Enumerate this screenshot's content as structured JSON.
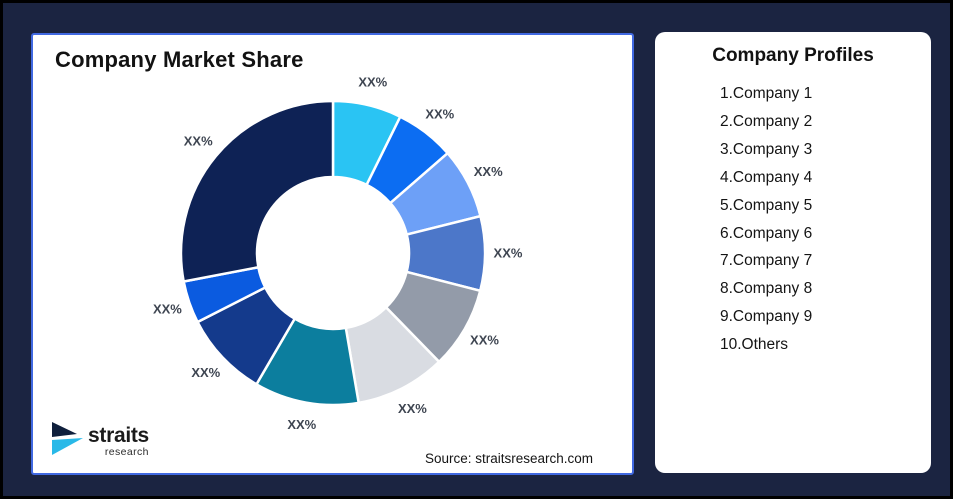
{
  "theme": {
    "bg": "#1B2441",
    "frame": "#000000",
    "card-border": "#4169E1",
    "text-dark": "#121212",
    "label-gray": "#3E4551"
  },
  "left_card": {
    "title": "Company Market Share",
    "source_text": "Source: straitsresearch.com",
    "logo": {
      "brand": "straits",
      "sub": "research",
      "mark_navy": "#0F1F3C",
      "mark_cyan": "#29B9E8"
    }
  },
  "right_card": {
    "title": "Company Profiles",
    "items": [
      "1.Company 1",
      "2.Company 2",
      "3.Company 3",
      "4.Company 4",
      "5.Company 5",
      "6.Company 6",
      "7.Company 7",
      "8.Company 8",
      "9.Company 9",
      "10.Others"
    ]
  },
  "chart_data": {
    "type": "pie",
    "subtype": "donut",
    "title": "Company Market Share",
    "note": "numeric values are masked as XX% in the source image; shares estimated from arc angles",
    "start_angle_deg": 0,
    "clockwise": true,
    "inner_radius_ratio": 0.5,
    "legend_position": "none",
    "segments": [
      {
        "name": "segment-1",
        "label": "XX%",
        "value": 7.3,
        "color": "#2AC4F3"
      },
      {
        "name": "segment-2",
        "label": "XX%",
        "value": 6.3,
        "color": "#0C6DF2"
      },
      {
        "name": "segment-3",
        "label": "XX%",
        "value": 7.5,
        "color": "#6DA0F7"
      },
      {
        "name": "segment-4",
        "label": "XX%",
        "value": 7.9,
        "color": "#4C77C9"
      },
      {
        "name": "segment-5",
        "label": "XX%",
        "value": 8.7,
        "color": "#939BA9"
      },
      {
        "name": "segment-6",
        "label": "XX%",
        "value": 9.6,
        "color": "#D9DCE2"
      },
      {
        "name": "segment-7",
        "label": "XX%",
        "value": 11.1,
        "color": "#0C7E9E"
      },
      {
        "name": "segment-8",
        "label": "XX%",
        "value": 9.1,
        "color": "#143A8C"
      },
      {
        "name": "segment-9",
        "label": "XX%",
        "value": 4.5,
        "color": "#0B5BE0"
      },
      {
        "name": "segment-10",
        "label": "XX%",
        "value": 28.0,
        "color": "#0E2255"
      }
    ]
  }
}
